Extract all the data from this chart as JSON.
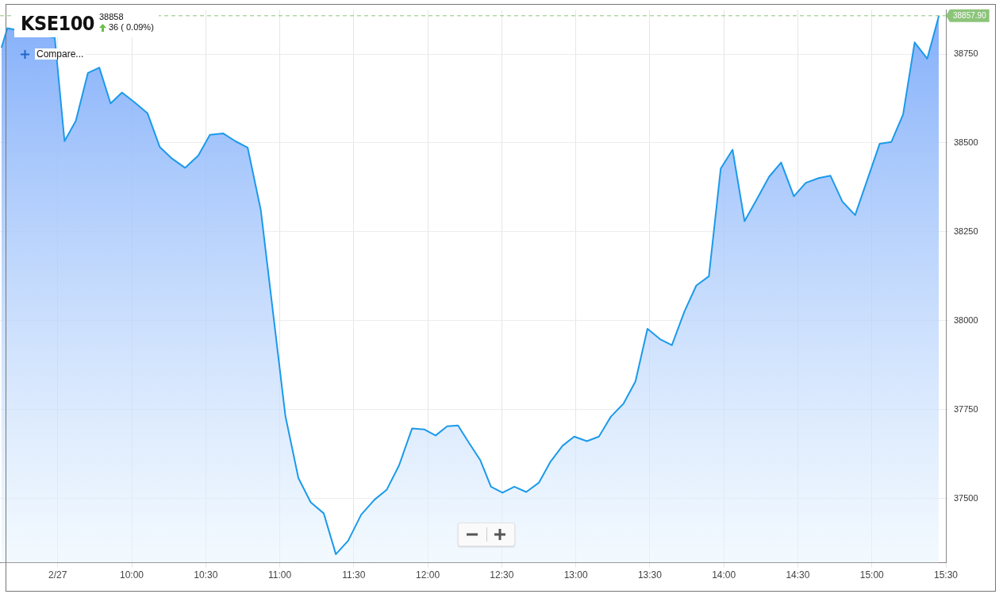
{
  "chart_data": {
    "type": "area",
    "title": "KSE100",
    "annotations": [
      "38858",
      "36 ( 0.09%)",
      "Compare..."
    ],
    "x": [
      9.12,
      9.16,
      9.48,
      9.546,
      9.622,
      9.704,
      9.781,
      9.857,
      9.934,
      10.017,
      10.106,
      10.189,
      10.272,
      10.361,
      10.45,
      10.528,
      10.617,
      10.7,
      10.783,
      10.872,
      11.038,
      11.126,
      11.209,
      11.297,
      11.379,
      11.462,
      11.55,
      11.639,
      11.722,
      11.806,
      11.894,
      11.978,
      12.053,
      12.131,
      12.204,
      12.277,
      12.354,
      12.427,
      12.505,
      12.585,
      12.665,
      12.75,
      12.83,
      12.91,
      12.989,
      13.075,
      13.156,
      13.237,
      13.323,
      13.403,
      13.484,
      13.569,
      13.649,
      13.734,
      13.814,
      13.899,
      13.979,
      14.059,
      14.14,
      14.226,
      14.306,
      14.387,
      14.473,
      14.554,
      14.64,
      14.72,
      14.801,
      14.887,
      14.973,
      15.053,
      15.132,
      15.211,
      15.289,
      15.374,
      15.453
    ],
    "series": [
      {
        "color": "#1b9aea",
        "values": [
          38768,
          38823,
          38796,
          38505,
          38562,
          38697,
          38712,
          38611,
          38642,
          38615,
          38584,
          38489,
          38456,
          38430,
          38465,
          38523,
          38527,
          38505,
          38487,
          38311,
          37732,
          37557,
          37489,
          37458,
          37343,
          37381,
          37454,
          37496,
          37524,
          37593,
          37697,
          37694,
          37677,
          37703,
          37705,
          37657,
          37608,
          37533,
          37516,
          37533,
          37518,
          37544,
          37604,
          37648,
          37674,
          37661,
          37674,
          37730,
          37767,
          37829,
          37977,
          37948,
          37931,
          38026,
          38099,
          38125,
          38428,
          38481,
          38280,
          38344,
          38405,
          38445,
          38350,
          38388,
          38401,
          38408,
          38335,
          38297,
          38401,
          38498,
          38503,
          38580,
          38783,
          38737,
          38858
        ]
      }
    ],
    "xlim": [
      9.11,
      15.5
    ],
    "xticks": [
      {
        "value": 9.5,
        "label": "2/27"
      },
      {
        "value": 10,
        "label": "10:00"
      },
      {
        "value": 10.5,
        "label": "10:30"
      },
      {
        "value": 11,
        "label": "11:00"
      },
      {
        "value": 11.5,
        "label": "11:30"
      },
      {
        "value": 12,
        "label": "12:00"
      },
      {
        "value": 12.5,
        "label": "12:30"
      },
      {
        "value": 13,
        "label": "13:00"
      },
      {
        "value": 13.5,
        "label": "13:30"
      },
      {
        "value": 14,
        "label": "14:00"
      },
      {
        "value": 14.5,
        "label": "14:30"
      },
      {
        "value": 15,
        "label": "15:00"
      },
      {
        "value": 15.5,
        "label": "15:30"
      }
    ],
    "ylim": [
      37319,
      38874
    ],
    "yticks": [
      37500,
      37750,
      38000,
      38250,
      38500,
      38750
    ],
    "ref_lines": [
      {
        "axis": "y",
        "value": 38857.9,
        "label": "38857.90",
        "color": "#8cc47a",
        "line_style": "dashed"
      }
    ],
    "grid": true,
    "legend": false,
    "marker": "none",
    "line_style": "solid"
  }
}
